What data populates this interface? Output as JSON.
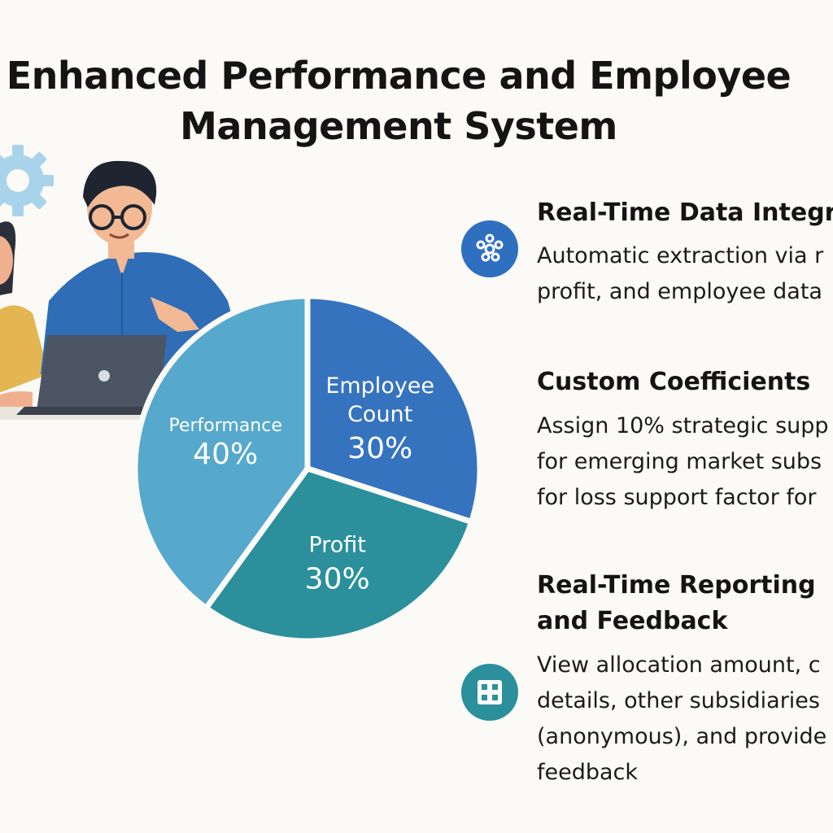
{
  "header": {
    "title_lines": [
      "Enhanced Performance and Employee",
      "Management System"
    ]
  },
  "chart_data": {
    "type": "pie",
    "slices": [
      {
        "label_lines": [
          "Employee",
          "Count"
        ],
        "value": 30,
        "value_label": "30%",
        "color": "#3573bf"
      },
      {
        "label_lines": [
          "Profit"
        ],
        "value": 30,
        "value_label": "30%",
        "color": "#2b8f9c"
      },
      {
        "label_lines": [
          "Performance"
        ],
        "value": 40,
        "value_label": "40%",
        "color": "#56a8cc"
      }
    ]
  },
  "features": [
    {
      "title_lines": [
        "Real-Time Data Integr"
      ],
      "desc_lines": [
        "Automatic extraction via r",
        "profit, and employee data"
      ],
      "icon": "network-nodes-icon",
      "icon_color": "#2f6fc0"
    },
    {
      "title_lines": [
        "Custom Coefficients"
      ],
      "desc_lines": [
        "Assign 10% strategic supp",
        "for emerging market subs",
        "for loss support factor for"
      ],
      "icon": null
    },
    {
      "title_lines": [
        "Real-Time Reporting",
        "and Feedback"
      ],
      "desc_lines": [
        "View allocation amount, c",
        "details, other subsidiaries",
        "(anonymous), and provide",
        "feedback"
      ],
      "icon": "grid-report-icon",
      "icon_color": "#2b8f9c"
    }
  ],
  "colors": {
    "background": "#fbfaf6",
    "gear": "#a9d3ea",
    "shirt": "#2f6db6",
    "laptop": "#4b5563"
  }
}
